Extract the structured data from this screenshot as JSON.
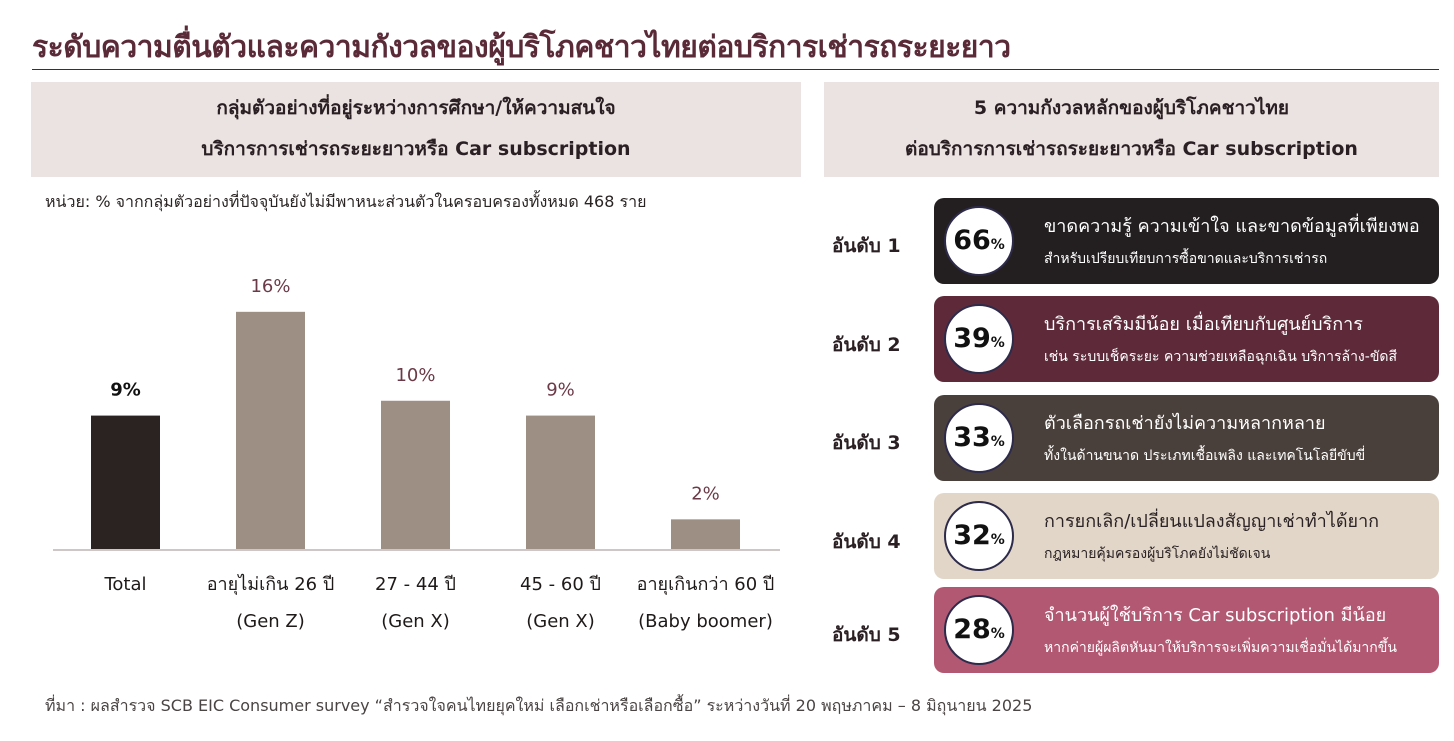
{
  "title": "ระดับความตื่นตัวและความกังวลของผู้บริโภคชาวไทยต่อบริการเช่ารถระยะยาว",
  "left_panel": {
    "heading_line1": "กลุ่มตัวอย่างที่อยู่ระหว่างการศึกษา/ให้ความสนใจ",
    "heading_line2": "บริการการเช่ารถระยะยาวหรือ Car subscription",
    "unit_note": "หน่วย: % จากกลุ่มตัวอย่างที่ปัจจุบันยังไม่มีพาหนะส่วนตัวในครอบครองทั้งหมด  468 ราย"
  },
  "right_panel": {
    "heading_line1": "5 ความกังวลหลักของผู้บริโภคชาวไทย",
    "heading_line2": "ต่อบริการการเช่ารถระยะยาวหรือ Car subscription",
    "concerns": [
      {
        "rank_label": "อันดับ 1",
        "value": "66",
        "unit": "%",
        "main": "ขาดความรู้ ความเข้าใจ และขาดข้อมูลที่เพียงพอ",
        "sub": "สำหรับเปรียบเทียบการซื้อขาดและบริการเช่ารถ",
        "bg": "#231f20",
        "fg": "#ffffff"
      },
      {
        "rank_label": "อันดับ 2",
        "value": "39",
        "unit": "%",
        "main": "บริการเสริมมีน้อย เมื่อเทียบกับศูนย์บริการ",
        "sub": "เช่น ระบบเช็คระยะ ความช่วยเหลือฉุกเฉิน บริการล้าง-ขัดสี",
        "bg": "#5e2a3a",
        "fg": "#ffffff"
      },
      {
        "rank_label": "อันดับ 3",
        "value": "33",
        "unit": "%",
        "main": "ตัวเลือกรถเช่ายังไม่ความหลากหลาย",
        "sub": "ทั้งในด้านขนาด ประเภทเชื้อเพลิง และเทคโนโลยีขับขี่",
        "bg": "#4a403b",
        "fg": "#ffffff"
      },
      {
        "rank_label": "อันดับ 4",
        "value": "32",
        "unit": "%",
        "main": "การยกเลิก/เปลี่ยนแปลงสัญญาเช่าทำได้ยาก",
        "sub": "กฎหมายคุ้มครองผู้บริโภคยังไม่ชัดเจน",
        "bg": "#e2d6c8",
        "fg": "#2a2224"
      },
      {
        "rank_label": "อันดับ 5",
        "value": "28",
        "unit": "%",
        "main": "จำนวนผู้ใช้บริการ Car subscription มีน้อย",
        "sub": "หากค่ายผู้ผลิตหันมาให้บริการจะเพิ่มความเชื่อมั่นได้มากขึ้น",
        "bg": "#b25872",
        "fg": "#ffffff"
      }
    ]
  },
  "source": "ที่มา : ผลสำรวจ SCB EIC Consumer survey “สำรวจใจคนไทยยุคใหม่ เลือกเช่าหรือเลือกซื้อ” ระหว่างวันที่ 20 พฤษภาคม – 8 มิถุนายน 2025",
  "chart_data": {
    "type": "bar",
    "categories": [
      [
        "Total"
      ],
      [
        "อายุไม่เกิน 26 ปี",
        "(Gen Z)"
      ],
      [
        "27 - 44 ปี",
        "(Gen X)"
      ],
      [
        "45 - 60 ปี",
        "(Gen X)"
      ],
      [
        "อายุเกินกว่า 60 ปี",
        "(Baby boomer)"
      ]
    ],
    "values": [
      9,
      16,
      10,
      9,
      2
    ],
    "data_labels": [
      "9%",
      "16%",
      "10%",
      "9%",
      "2%"
    ],
    "colors": [
      "#2b2322",
      "#9e8f84",
      "#9e8f84",
      "#9e8f84",
      "#9e8f84"
    ],
    "label_colors": [
      "#111111",
      "#6b3a48",
      "#6b3a48",
      "#6b3a48",
      "#6b3a48"
    ],
    "ylim": [
      0,
      17
    ],
    "grid": false,
    "xlabel": "",
    "ylabel": ""
  }
}
